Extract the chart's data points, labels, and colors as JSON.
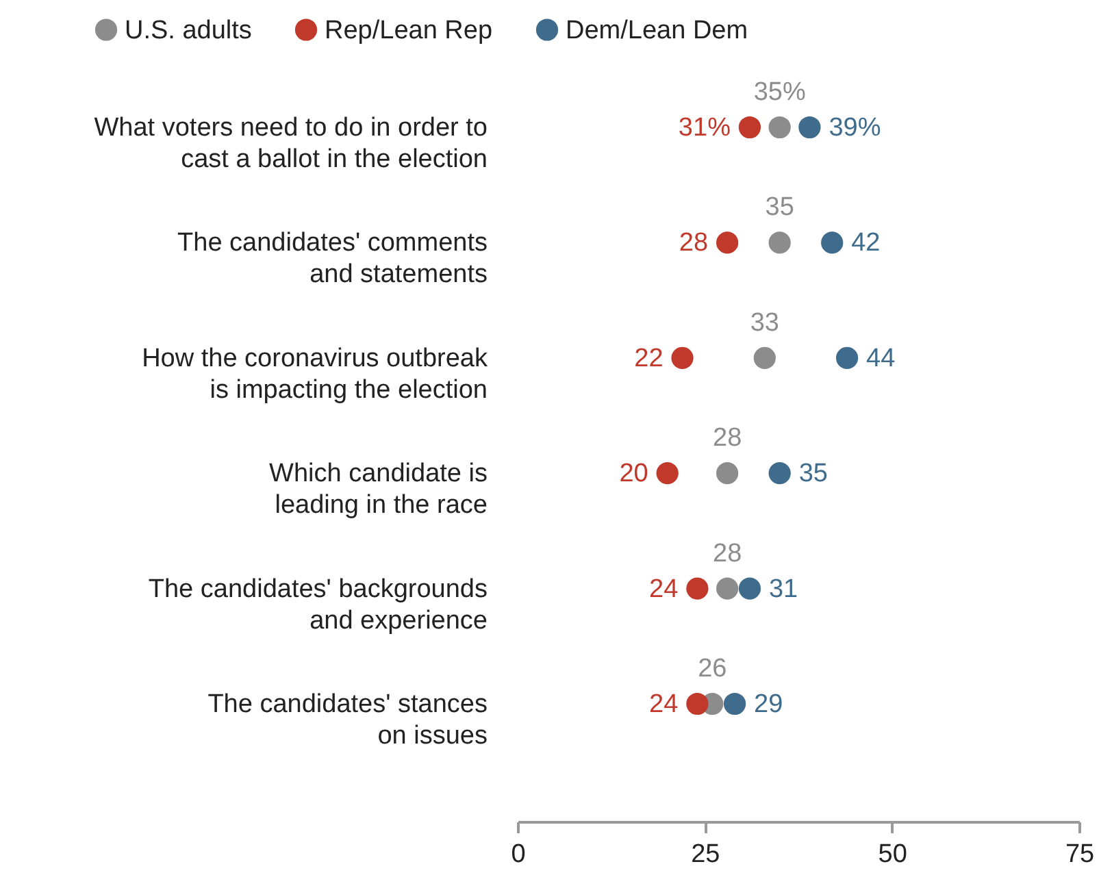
{
  "chart_data": {
    "type": "scatter",
    "orientation": "horizontal",
    "categories": [
      "What voters need to do in order to\ncast a ballot in the election",
      "The candidates' comments\nand statements",
      "How the coronavirus outbreak\nis impacting the election",
      "Which candidate is\nleading in the race",
      "The candidates' backgrounds\nand experience",
      "The candidates' stances\non issues"
    ],
    "series": [
      {
        "name": "U.S. adults",
        "color": "#8c8c8c",
        "values": [
          35,
          35,
          33,
          28,
          28,
          26
        ],
        "value_labels": [
          "35%",
          "35",
          "33",
          "28",
          "28",
          "26"
        ]
      },
      {
        "name": "Rep/Lean Rep",
        "color": "#c0392b",
        "values": [
          31,
          28,
          22,
          20,
          24,
          24
        ],
        "value_labels": [
          "31%",
          "28",
          "22",
          "20",
          "24",
          "24"
        ]
      },
      {
        "name": "Dem/Lean Dem",
        "color": "#3f6b8c",
        "values": [
          39,
          42,
          44,
          35,
          31,
          29
        ],
        "value_labels": [
          "39%",
          "42",
          "44",
          "35",
          "31",
          "29"
        ]
      }
    ],
    "xlim": [
      0,
      75
    ],
    "xticks": [
      0,
      25,
      50,
      75
    ],
    "legend": "top",
    "grid": false,
    "marker": "circle"
  }
}
